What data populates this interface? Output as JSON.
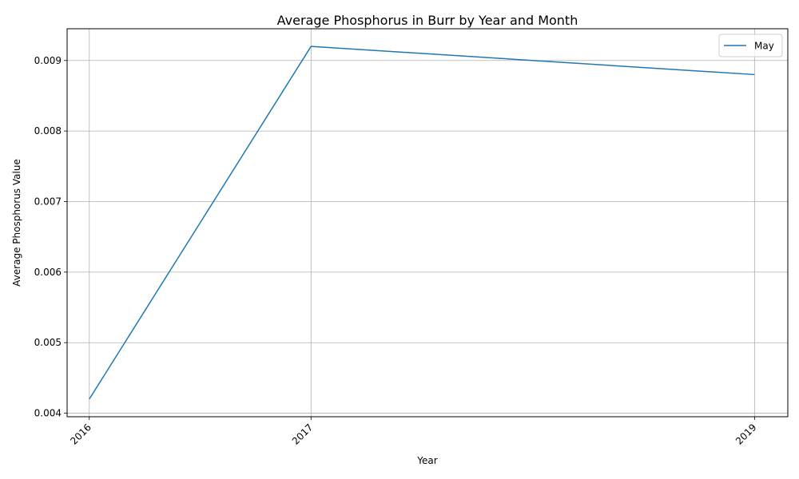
{
  "chart_data": {
    "type": "line",
    "title": "Average Phosphorus in Burr by Year and Month",
    "xlabel": "Year",
    "ylabel": "Average Phosphorus Value",
    "x": [
      2016,
      2017,
      2019
    ],
    "x_tick_labels": [
      "2016",
      "2017",
      "2019"
    ],
    "xlim": [
      2015.9,
      2019.15
    ],
    "y_ticks": [
      0.004,
      0.005,
      0.006,
      0.007,
      0.008,
      0.009
    ],
    "y_tick_labels": [
      "0.004",
      "0.005",
      "0.006",
      "0.007",
      "0.008",
      "0.009"
    ],
    "ylim": [
      0.00395,
      0.00945
    ],
    "series": [
      {
        "name": "May",
        "values": [
          0.0042,
          0.0092,
          0.0088
        ],
        "color": "#1f77b4"
      }
    ],
    "grid": true,
    "legend_position": "top-right"
  }
}
